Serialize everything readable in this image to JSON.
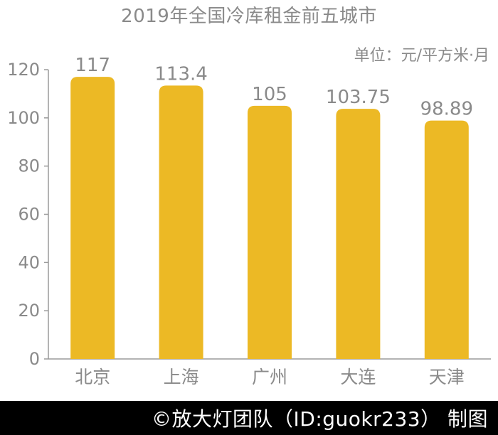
{
  "chart_data": {
    "type": "bar",
    "title": "2019年全国冷库租金前五城市",
    "unit": "单位：元/平方米·月",
    "categories": [
      "北京",
      "上海",
      "广州",
      "大连",
      "天津"
    ],
    "values": [
      117,
      113.4,
      105,
      103.75,
      98.89
    ],
    "data_labels": [
      "117",
      "113.4",
      "105",
      "103.75",
      "98.89"
    ],
    "ylim": [
      0,
      120
    ],
    "yticks": [
      0,
      20,
      40,
      60,
      80,
      100,
      120
    ],
    "xlabel": "",
    "ylabel": "",
    "grid": false,
    "legend": "none",
    "bar_color": "#ECB925",
    "text_color": "#8a8a8a"
  },
  "footer": {
    "credit": "©放大灯团队（ID:guokr233） 制图"
  }
}
